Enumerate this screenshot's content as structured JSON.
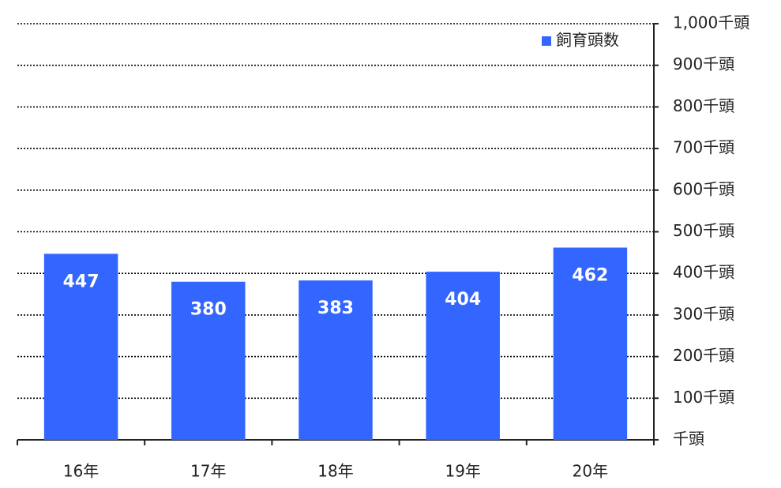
{
  "chart_data": {
    "type": "bar",
    "categories": [
      "16年",
      "17年",
      "18年",
      "19年",
      "20年"
    ],
    "series": [
      {
        "name": "飼育頭数",
        "color": "#3366ff",
        "values": [
          447,
          380,
          383,
          404,
          462
        ]
      }
    ],
    "ylim": [
      0,
      1000
    ],
    "yticks": [
      {
        "value": 0,
        "label": "千頭"
      },
      {
        "value": 100,
        "label": "100千頭"
      },
      {
        "value": 200,
        "label": "200千頭"
      },
      {
        "value": 300,
        "label": "300千頭"
      },
      {
        "value": 400,
        "label": "400千頭"
      },
      {
        "value": 500,
        "label": "500千頭"
      },
      {
        "value": 600,
        "label": "600千頭"
      },
      {
        "value": 700,
        "label": "700千頭"
      },
      {
        "value": 800,
        "label": "800千頭"
      },
      {
        "value": 900,
        "label": "900千頭"
      },
      {
        "value": 1000,
        "label": "1,000千頭"
      }
    ],
    "grid": true,
    "legend": "top-right"
  }
}
